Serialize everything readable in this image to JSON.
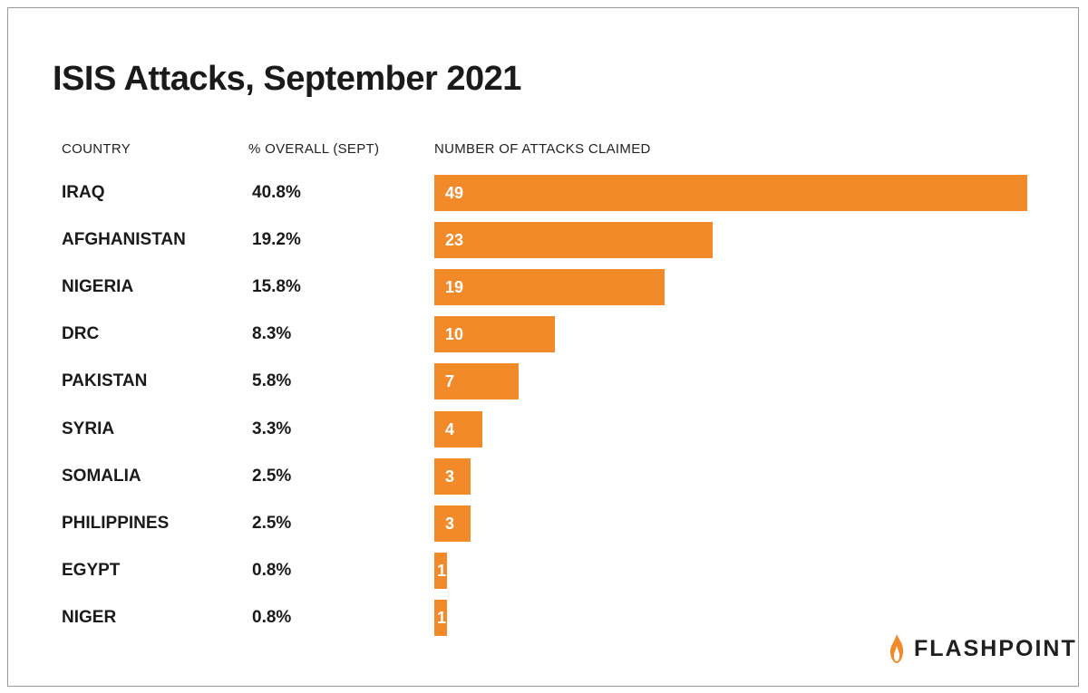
{
  "chart_data": {
    "type": "bar",
    "title": "ISIS Attacks, September 2021",
    "column_headers": {
      "country": "COUNTRY",
      "percent": "% OVERALL (SEPT)",
      "attacks": "NUMBER OF ATTACKS CLAIMED"
    },
    "categories": [
      "IRAQ",
      "AFGHANISTAN",
      "NIGERIA",
      "DRC",
      "PAKISTAN",
      "SYRIA",
      "SOMALIA",
      "PHILIPPINES",
      "EGYPT",
      "NIGER"
    ],
    "percent_labels": [
      "40.8%",
      "19.2%",
      "15.8%",
      "8.3%",
      "5.8%",
      "3.3%",
      "2.5%",
      "2.5%",
      "0.8%",
      "0.8%"
    ],
    "values": [
      49,
      23,
      19,
      10,
      7,
      4,
      3,
      3,
      1,
      1
    ],
    "orientation": "horizontal",
    "xlim": [
      0,
      49
    ],
    "bar_color": "#f28a2a",
    "grid": false
  },
  "brand": {
    "name": "FLASHPOINT",
    "logo_icon": "flame-icon",
    "accent_color": "#f28a2a"
  }
}
